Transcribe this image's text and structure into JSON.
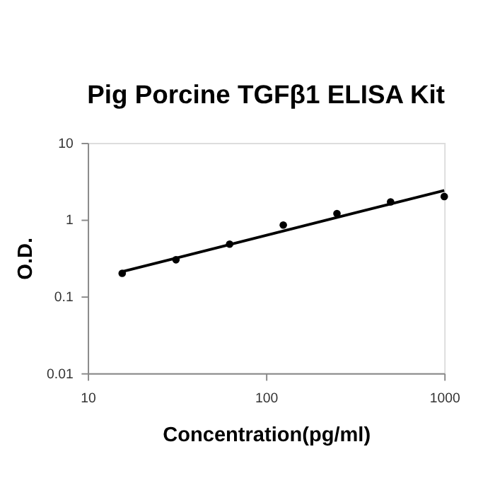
{
  "chart_data": {
    "type": "scatter",
    "title": "Pig Porcine TGFβ1 ELISA Kit",
    "xlabel": "Concentration(pg/ml)",
    "ylabel": "O.D.",
    "log": "xy",
    "marker": "circle",
    "xlim": [
      10,
      1000
    ],
    "xticks": [
      10,
      100,
      1000
    ],
    "ylim": [
      0.01,
      10
    ],
    "yticks": [
      0.01,
      0.1,
      1,
      10
    ],
    "series": [
      {
        "color": "#000000",
        "x": [
          15.6,
          31.25,
          62.5,
          125,
          250,
          500,
          1000
        ],
        "values": [
          0.2,
          0.3,
          0.48,
          0.85,
          1.2,
          1.7,
          2.0
        ]
      },
      {
        "type": "line",
        "marker": "none",
        "color": "#000000",
        "line_style": "solid",
        "x": [
          15.6,
          1000
        ],
        "values": [
          0.21,
          2.4
        ]
      }
    ]
  }
}
